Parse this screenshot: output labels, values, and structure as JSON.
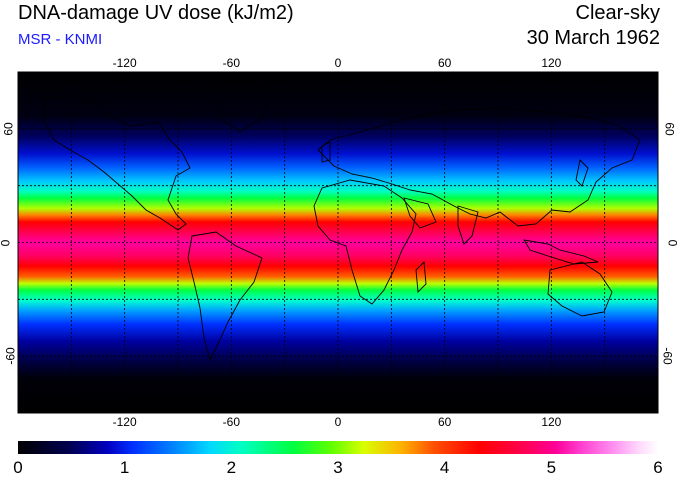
{
  "header": {
    "title": "DNA-damage UV dose (kJ/m2)",
    "credit": "MSR - KNMI",
    "sky": "Clear-sky",
    "date": "30 March 1962"
  },
  "axes": {
    "lon_ticks": [
      "-120",
      "-60",
      "0",
      "60",
      "120"
    ],
    "lat_ticks": [
      "60",
      "0",
      "-60"
    ]
  },
  "colorbar": {
    "ticks": [
      "0",
      "1",
      "2",
      "3",
      "4",
      "5",
      "6"
    ]
  },
  "map": {
    "lon_range": [
      -180,
      180
    ],
    "lat_range": [
      -90,
      90
    ],
    "grid_lon": [
      -150,
      -120,
      -90,
      -60,
      -30,
      0,
      30,
      60,
      90,
      120,
      150
    ],
    "grid_lat": [
      -60,
      -30,
      0,
      30,
      60
    ],
    "colors": {
      "background": "#000000",
      "coast": "#000000",
      "grid": "#000000"
    }
  }
}
